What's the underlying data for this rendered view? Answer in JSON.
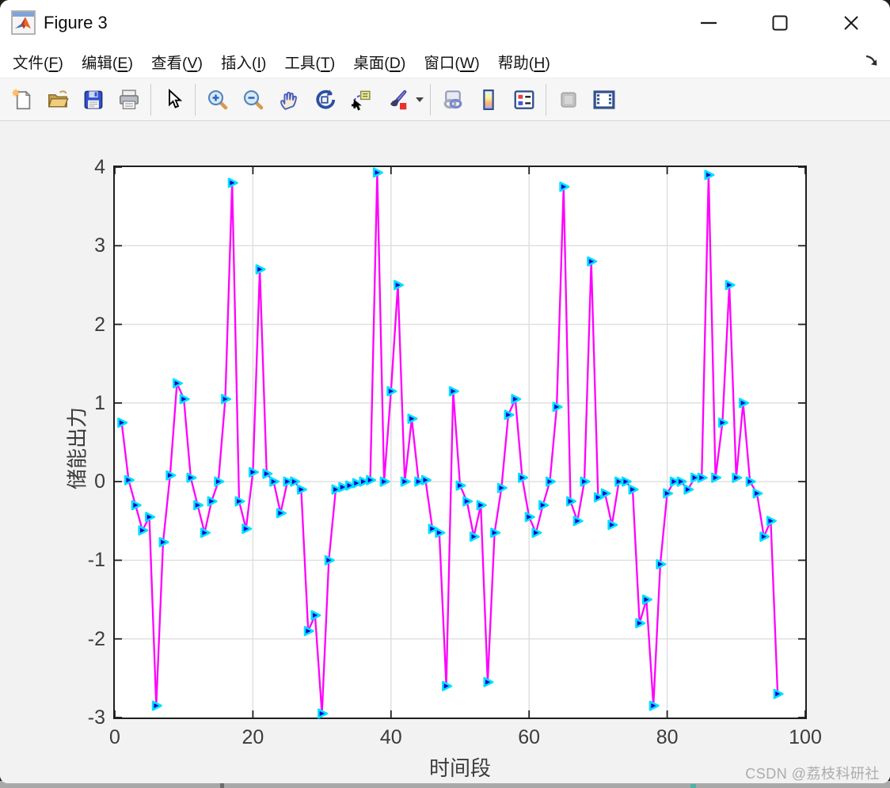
{
  "window": {
    "title": "Figure 3",
    "controls": [
      {
        "name": "minimize"
      },
      {
        "name": "maximize"
      },
      {
        "name": "close"
      }
    ]
  },
  "menu": {
    "items": [
      {
        "name": "file",
        "label": "文件(F)"
      },
      {
        "name": "edit",
        "label": "编辑(E)"
      },
      {
        "name": "view",
        "label": "查看(V)"
      },
      {
        "name": "insert",
        "label": "插入(I)"
      },
      {
        "name": "tools",
        "label": "工具(T)"
      },
      {
        "name": "desktop",
        "label": "桌面(D)"
      },
      {
        "name": "window",
        "label": "窗口(W)"
      },
      {
        "name": "help",
        "label": "帮助(H)"
      }
    ],
    "dock_icon": "dock-arrow-icon"
  },
  "toolbar": {
    "icons": [
      "new-figure",
      "open-file",
      "save-figure",
      "print-figure",
      "edit-plot-pointer",
      "zoom-in",
      "zoom-out",
      "pan-hand",
      "rotate-3d",
      "data-cursor",
      "brush-data",
      "brush-dropdown-caret",
      "link-plot",
      "insert-colorbar",
      "insert-legend",
      "plot-tools-off",
      "dock-plot-tools"
    ]
  },
  "watermark": "CSDN @荔枝科研社",
  "chart_data": {
    "type": "line",
    "title": "",
    "xlabel": "时间段",
    "ylabel": "储能出力",
    "xlim": [
      0,
      100
    ],
    "ylim": [
      -3,
      4
    ],
    "xticks": [
      0,
      20,
      40,
      60,
      80,
      100
    ],
    "yticks": [
      -3,
      -2,
      -1,
      0,
      1,
      2,
      3,
      4
    ],
    "grid": true,
    "legend": "none",
    "line_color": "#FF00FF",
    "marker": "triangle-right",
    "marker_face": "#0000CD",
    "marker_edge": "#00E0FF",
    "x": [
      1,
      2,
      3,
      4,
      5,
      6,
      7,
      8,
      9,
      10,
      11,
      12,
      13,
      14,
      15,
      16,
      17,
      18,
      19,
      20,
      21,
      22,
      23,
      24,
      25,
      26,
      27,
      28,
      29,
      30,
      31,
      32,
      33,
      34,
      35,
      36,
      37,
      38,
      39,
      40,
      41,
      42,
      43,
      44,
      45,
      46,
      47,
      48,
      49,
      50,
      51,
      52,
      53,
      54,
      55,
      56,
      57,
      58,
      59,
      60,
      61,
      62,
      63,
      64,
      65,
      66,
      67,
      68,
      69,
      70,
      71,
      72,
      73,
      74,
      75,
      76,
      77,
      78,
      79,
      80,
      81,
      82,
      83,
      84,
      85,
      86,
      87,
      88,
      89,
      90,
      91,
      92,
      93,
      94,
      95,
      96
    ],
    "y": [
      0.75,
      0.02,
      -0.3,
      -0.62,
      -0.45,
      -2.85,
      -0.77,
      0.08,
      1.25,
      1.05,
      0.05,
      -0.3,
      -0.65,
      -0.25,
      0,
      1.05,
      3.8,
      -0.25,
      -0.6,
      0.12,
      2.7,
      0.1,
      0,
      -0.4,
      0,
      0,
      -0.1,
      -1.9,
      -1.7,
      -2.95,
      -1.0,
      -0.1,
      -0.07,
      -0.05,
      -0.02,
      0,
      0.02,
      3.93,
      0,
      1.15,
      2.5,
      0,
      0.8,
      0,
      0.02,
      -0.6,
      -0.65,
      -2.6,
      1.15,
      -0.05,
      -0.25,
      -0.7,
      -0.3,
      -2.55,
      -0.65,
      -0.08,
      0.85,
      1.05,
      0.05,
      -0.45,
      -0.65,
      -0.3,
      0,
      0.95,
      3.75,
      -0.25,
      -0.5,
      0,
      2.8,
      -0.2,
      -0.15,
      -0.55,
      0,
      0,
      -0.1,
      -1.8,
      -1.5,
      -2.85,
      -1.05,
      -0.15,
      0,
      0,
      -0.1,
      0.05,
      0.05,
      3.9,
      0.05,
      0.75,
      2.5,
      0.05,
      1.0,
      0,
      -0.15,
      -0.7,
      -0.5,
      -2.7
    ]
  }
}
